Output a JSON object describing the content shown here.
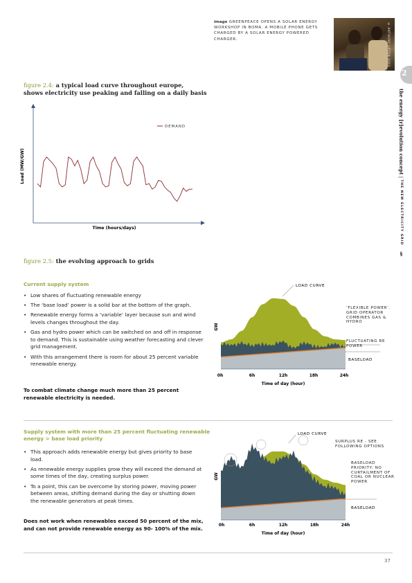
{
  "photo": {
    "caption_label": "image",
    "caption_text": "GREENPEACE OPENS A SOLAR ENERGY WORKSHOP IN BOMA. A MOBILE PHONE GETS CHARGED BY A SOLAR ENERGY POWERED CHARGER.",
    "credit": "© ANTHONY UPTON 2003"
  },
  "sidebar": {
    "chapter_number": "2",
    "title": "the energy [r]evolution concept",
    "separator": "|",
    "subtitle": "THE NEW ELECTRICITY GRID",
    "mark": "§"
  },
  "figure_2_4": {
    "number": "figure 2.4:",
    "title_line1": "a typical load curve throughout europe,",
    "title_line2": "shows electricity use peaking and falling on a daily basis",
    "chart_data": {
      "type": "line",
      "xlabel": "Time (hours/days)",
      "ylabel": "Load (MW/GW)",
      "series": [
        {
          "name": "DEMAND",
          "values": [
            33,
            30,
            53,
            57,
            54,
            51,
            47,
            33,
            30,
            32,
            57,
            55,
            49,
            54,
            46,
            33,
            36,
            53,
            57,
            49,
            44,
            33,
            30,
            31,
            52,
            57,
            51,
            46,
            34,
            31,
            33,
            53,
            57,
            53,
            49,
            32,
            33,
            28,
            30,
            36,
            35,
            30,
            27,
            25,
            20,
            17,
            22,
            29,
            26,
            28,
            28
          ]
        }
      ],
      "ylim": [
        0,
        100
      ]
    }
  },
  "figure_2_5": {
    "number": "figure 2.5:",
    "title": "the evolving approach to grids"
  },
  "current_supply": {
    "heading": "Current supply system",
    "bullets": [
      "Low shares of fluctuating renewable energy",
      "The ‘base load’ power is a solid bar at the bottom of the graph.",
      "Renewable energy forms a ‘variable’ layer because sun and wind levels changes throughout the day.",
      "Gas and hydro power which can be switched on and off in response to demand. This is sustainable using weather forecasting and clever grid management.",
      "With this arrangement there is room for about 25 percent variable renewable energy."
    ],
    "conclusion": "To combat climate change much more than 25 percent renewable electricity is needed.",
    "chart_data": {
      "type": "area",
      "xlabel": "Time of day (hour)",
      "ylabel": "GW",
      "x_ticks": [
        "0h",
        "6h",
        "12h",
        "18h",
        "24h"
      ],
      "annotations": [
        "LOAD CURVE",
        "‘FLEXIBLE POWER’. GRID OPERATOR COMBINES GAS & HYDRO",
        "FLUCTUATING RE POWER",
        "BASELOAD"
      ],
      "x": [
        0,
        2,
        4,
        6,
        8,
        10,
        12,
        14,
        16,
        18,
        20,
        22,
        24
      ],
      "load_curve": [
        3.5,
        3.9,
        5.0,
        6.8,
        8.5,
        9.3,
        9.2,
        8.3,
        6.8,
        5.2,
        4.3,
        3.9,
        3.8
      ],
      "fluctuating_re_top": [
        3.3,
        3.0,
        3.6,
        2.9,
        3.4,
        3.2,
        3.5,
        2.9,
        3.3,
        3.1,
        3.0,
        3.2,
        3.1
      ],
      "baseload": [
        1.6,
        1.7,
        1.8,
        1.9,
        2.0,
        2.1,
        2.2,
        2.3,
        2.4,
        2.5,
        2.6,
        2.7,
        2.8
      ]
    }
  },
  "surplus_supply": {
    "heading_line1": "Supply system with more than 25 percent fluctuating renewable",
    "heading_line2": "energy > base load priority",
    "bullets": [
      "This approach adds renewable energy but gives priority to base load.",
      "As renewable energy supplies grow they will exceed the demand at some times of the day, creating surplus power.",
      "To a point, this can be overcome by storing power, moving power between areas, shifting demand during the day or shutting down the renewable generators at peak times."
    ],
    "conclusion": "Does not work when renewables exceed 50 percent of the mix, and can not provide renewable energy as 90- 100% of the mix.",
    "chart_data": {
      "type": "area",
      "xlabel": "Time of day (hour)",
      "ylabel": "GW",
      "x_ticks": [
        "0h",
        "6h",
        "12h",
        "18h",
        "24h"
      ],
      "annotations": [
        "LOAD CURVE",
        "SURPLUS RE - SEE FOLLOWING OPTIONS",
        "BASELOAD PRIORITY: NO CURTAILMENT OF COAL OR NUCLEAR POWER",
        "BASELOAD"
      ],
      "x": [
        0,
        2,
        4,
        6,
        8,
        10,
        12,
        14,
        16,
        18,
        20,
        22,
        24
      ],
      "load_curve": [
        4.0,
        4.5,
        5.5,
        7.0,
        8.3,
        9.0,
        9.0,
        8.4,
        7.3,
        6.0,
        5.3,
        4.9,
        4.6
      ],
      "fluctuating_re_top": [
        6.5,
        8.0,
        7.0,
        9.5,
        8.5,
        7.5,
        8.0,
        9.0,
        6.5,
        5.5,
        4.5,
        4.0,
        3.6
      ],
      "baseload": [
        1.6,
        1.7,
        1.8,
        1.9,
        2.0,
        2.1,
        2.2,
        2.3,
        2.4,
        2.5,
        2.6,
        2.7,
        2.8
      ]
    }
  },
  "page_number": "37",
  "colors": {
    "green": "#a3ae27",
    "slate": "#3b5260",
    "baseload": "#b8bfc5",
    "orange": "#e07a2a",
    "demand": "#8b2a2e",
    "axis": "#3d4e7a"
  }
}
